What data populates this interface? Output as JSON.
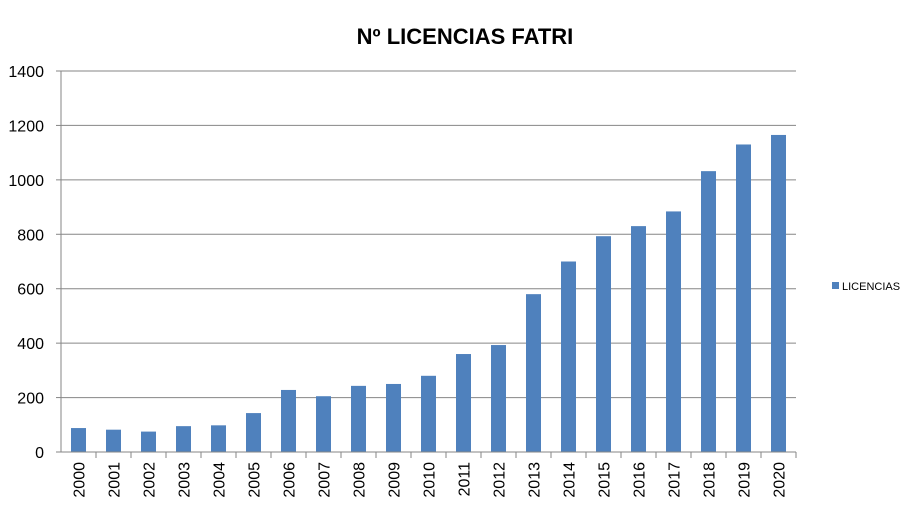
{
  "chart_data": {
    "type": "bar",
    "title": "Nº LICENCIAS FATRI",
    "xlabel": "",
    "ylabel": "",
    "categories": [
      "2000",
      "2001",
      "2002",
      "2003",
      "2004",
      "2005",
      "2006",
      "2007",
      "2008",
      "2009",
      "2010",
      "2011",
      "2012",
      "2013",
      "2014",
      "2015",
      "2016",
      "2017",
      "2018",
      "2019",
      "2020"
    ],
    "series": [
      {
        "name": "LICENCIAS",
        "values": [
          88,
          82,
          75,
          95,
          98,
          143,
          228,
          205,
          243,
          250,
          280,
          360,
          393,
          580,
          700,
          793,
          830,
          884,
          1032,
          1130,
          1165
        ]
      }
    ],
    "ylim": [
      0,
      1400
    ],
    "yticks": [
      0,
      200,
      400,
      600,
      800,
      1000,
      1200,
      1400
    ],
    "grid": true,
    "legend_position": "right",
    "colors": {
      "bar": "#4f81bd",
      "grid": "#868686",
      "axis": "#868686"
    }
  }
}
